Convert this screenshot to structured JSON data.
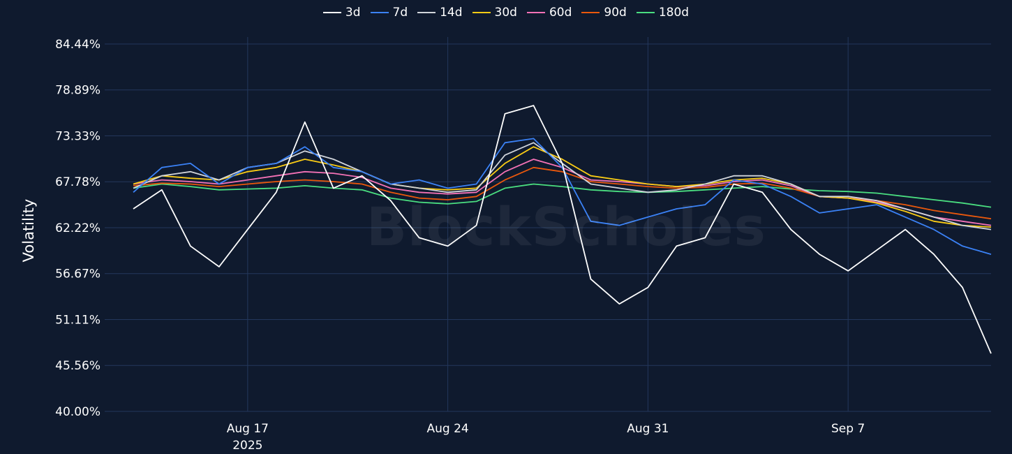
{
  "watermark": "BlockScholes",
  "chart_data": {
    "type": "line",
    "title": "",
    "xlabel": "",
    "ylabel": "Volatility",
    "ylim": [
      40.0,
      84.44
    ],
    "y_ticks": [
      "84.44%",
      "78.89%",
      "73.33%",
      "67.78%",
      "62.22%",
      "56.67%",
      "51.11%",
      "45.56%",
      "40.00%"
    ],
    "y_tick_values": [
      84.44,
      78.89,
      73.33,
      67.78,
      62.22,
      56.67,
      51.11,
      45.56,
      40.0
    ],
    "xlim": [
      "2025-08-12",
      "2025-09-12"
    ],
    "x_ticks": [
      {
        "date": "2025-08-17",
        "label": "Aug 17",
        "sub": "2025"
      },
      {
        "date": "2025-08-24",
        "label": "Aug 24",
        "sub": ""
      },
      {
        "date": "2025-08-31",
        "label": "Aug 31",
        "sub": ""
      },
      {
        "date": "2025-09-07",
        "label": "Sep 7",
        "sub": ""
      }
    ],
    "grid": true,
    "legend_position": "top-center",
    "dates": [
      "2025-08-13",
      "2025-08-14",
      "2025-08-15",
      "2025-08-16",
      "2025-08-17",
      "2025-08-18",
      "2025-08-19",
      "2025-08-20",
      "2025-08-21",
      "2025-08-22",
      "2025-08-23",
      "2025-08-24",
      "2025-08-25",
      "2025-08-26",
      "2025-08-27",
      "2025-08-28",
      "2025-08-29",
      "2025-08-30",
      "2025-08-31",
      "2025-09-01",
      "2025-09-02",
      "2025-09-03",
      "2025-09-04",
      "2025-09-05",
      "2025-09-06",
      "2025-09-07",
      "2025-09-08",
      "2025-09-09",
      "2025-09-10",
      "2025-09-11",
      "2025-09-12"
    ],
    "series": [
      {
        "name": "3d",
        "color": "#ffffff",
        "values": [
          64.5,
          66.8,
          60.0,
          57.5,
          62.0,
          66.5,
          75.0,
          67.0,
          68.5,
          65.5,
          61.0,
          60.0,
          62.5,
          76.0,
          77.0,
          70.0,
          56.0,
          53.0,
          55.0,
          60.0,
          61.0,
          67.5,
          66.5,
          62.0,
          59.0,
          57.0,
          59.5,
          62.0,
          59.0,
          55.0,
          47.0
        ]
      },
      {
        "name": "7d",
        "color": "#3b82f6",
        "values": [
          66.5,
          69.5,
          70.0,
          67.5,
          69.5,
          70.0,
          72.0,
          69.5,
          69.0,
          67.5,
          68.0,
          67.0,
          67.5,
          72.5,
          73.0,
          69.5,
          63.0,
          62.5,
          63.5,
          64.5,
          65.0,
          68.0,
          67.5,
          66.0,
          64.0,
          64.5,
          65.0,
          63.5,
          62.0,
          60.0,
          59.0
        ]
      },
      {
        "name": "14d",
        "color": "#d1d5db",
        "values": [
          67.0,
          68.5,
          69.0,
          68.0,
          69.5,
          70.0,
          71.5,
          70.5,
          69.0,
          67.5,
          67.0,
          66.5,
          66.8,
          71.0,
          72.5,
          70.0,
          67.5,
          67.0,
          66.5,
          66.8,
          67.5,
          68.5,
          68.5,
          67.5,
          66.0,
          66.0,
          65.5,
          64.5,
          63.5,
          62.5,
          62.0
        ]
      },
      {
        "name": "30d",
        "color": "#facc15",
        "values": [
          67.5,
          68.5,
          68.2,
          68.0,
          69.0,
          69.5,
          70.5,
          69.8,
          69.0,
          67.5,
          67.0,
          66.8,
          67.0,
          70.0,
          72.0,
          70.5,
          68.5,
          68.0,
          67.5,
          67.2,
          67.5,
          68.0,
          68.2,
          67.5,
          66.0,
          65.8,
          65.2,
          64.2,
          63.0,
          62.5,
          62.3
        ]
      },
      {
        "name": "60d",
        "color": "#f472b6",
        "values": [
          67.5,
          68.0,
          67.8,
          67.5,
          68.0,
          68.5,
          69.0,
          68.8,
          68.3,
          67.0,
          66.5,
          66.3,
          66.5,
          69.0,
          70.5,
          69.5,
          68.0,
          67.8,
          67.5,
          67.2,
          67.3,
          67.8,
          68.0,
          67.3,
          66.0,
          65.8,
          65.3,
          64.5,
          63.5,
          63.0,
          62.5
        ]
      },
      {
        "name": "90d",
        "color": "#ea580c",
        "values": [
          67.3,
          67.6,
          67.5,
          67.2,
          67.5,
          67.8,
          68.0,
          67.8,
          67.5,
          66.5,
          65.8,
          65.6,
          66.0,
          68.0,
          69.5,
          69.0,
          67.8,
          67.5,
          67.2,
          67.0,
          67.1,
          67.5,
          67.6,
          67.0,
          66.0,
          65.8,
          65.5,
          65.0,
          64.3,
          63.8,
          63.3
        ]
      },
      {
        "name": "180d",
        "color": "#4ade80",
        "values": [
          67.0,
          67.5,
          67.2,
          66.8,
          66.9,
          67.0,
          67.3,
          67.0,
          66.8,
          65.8,
          65.3,
          65.1,
          65.4,
          67.0,
          67.5,
          67.2,
          66.8,
          66.6,
          66.5,
          66.6,
          66.8,
          67.0,
          67.2,
          66.9,
          66.7,
          66.6,
          66.4,
          66.0,
          65.6,
          65.2,
          64.7
        ]
      }
    ]
  }
}
